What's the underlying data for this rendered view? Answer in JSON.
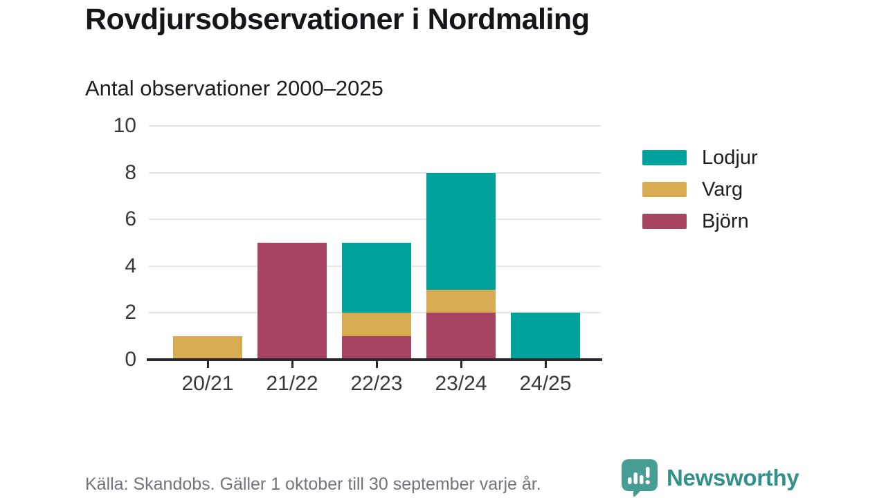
{
  "header": {
    "title": "Rovdjursobservationer i Nordmaling",
    "subtitle": "Antal observationer 2000–2025"
  },
  "chart_data": {
    "type": "bar",
    "stacked": true,
    "title": "Rovdjursobservationer i Nordmaling",
    "subtitle": "Antal observationer 2000–2025",
    "categories": [
      "20/21",
      "21/22",
      "22/23",
      "23/24",
      "24/25"
    ],
    "series": [
      {
        "name": "Björn",
        "color": "#a64360",
        "values": [
          0,
          5,
          1,
          2,
          0
        ]
      },
      {
        "name": "Varg",
        "color": "#d9ab52",
        "values": [
          1,
          0,
          1,
          1,
          0
        ]
      },
      {
        "name": "Lodjur",
        "color": "#00a29b",
        "values": [
          0,
          0,
          3,
          5,
          2
        ]
      }
    ],
    "totals": [
      1,
      5,
      5,
      8,
      2
    ],
    "xlabel": "",
    "ylabel": "",
    "ylim": [
      0,
      10
    ],
    "yticks": [
      0,
      2,
      4,
      6,
      8,
      10
    ],
    "grid": true,
    "legend_position": "right"
  },
  "legend": {
    "items": [
      {
        "label": "Lodjur",
        "color": "#00a29b"
      },
      {
        "label": "Varg",
        "color": "#d9ab52"
      },
      {
        "label": "Björn",
        "color": "#a64360"
      }
    ]
  },
  "footer": {
    "source": "Källa: Skandobs. Gäller 1 oktober till 30 september varje år.",
    "brand": "Newsworthy"
  },
  "colors": {
    "lodjur": "#00a29b",
    "varg": "#d9ab52",
    "bjorn": "#a64360",
    "axis": "#29292d",
    "gridline": "#e4e4e4",
    "text": "#16161a",
    "muted_text": "#71747b",
    "brand_teal": "#31918a",
    "logo_bubble": "#479c93"
  }
}
